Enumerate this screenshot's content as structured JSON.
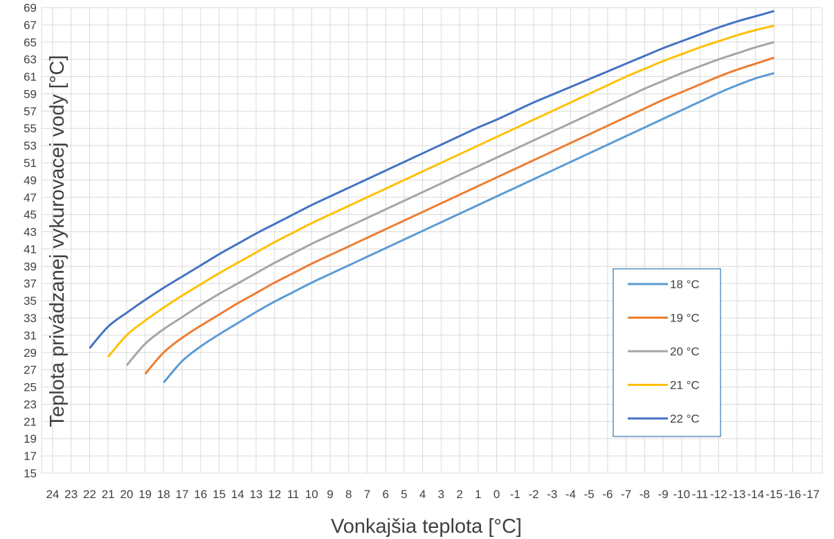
{
  "chart_data": {
    "type": "line",
    "xlabel": "Vonkajšia teplota [°C]",
    "ylabel": "Teplota privádzanej vykurovacej vody [°C]",
    "x_ticks": [
      24,
      23,
      22,
      21,
      20,
      19,
      18,
      17,
      16,
      15,
      14,
      13,
      12,
      11,
      10,
      9,
      8,
      7,
      6,
      5,
      4,
      3,
      2,
      1,
      0,
      -1,
      -2,
      -3,
      -4,
      -5,
      -6,
      -7,
      -8,
      -9,
      -10,
      -11,
      -12,
      -13,
      -14,
      -15,
      -16,
      -17
    ],
    "xlim": [
      24,
      -17
    ],
    "x_reversed": true,
    "ylim": [
      15,
      69
    ],
    "y_ticks": [
      15,
      17,
      19,
      21,
      23,
      25,
      27,
      29,
      31,
      33,
      35,
      37,
      39,
      41,
      43,
      45,
      47,
      49,
      51,
      53,
      55,
      57,
      59,
      61,
      63,
      65,
      67,
      69
    ],
    "grid": true,
    "legend_position": "bottom-right",
    "series": [
      {
        "name": "18 °C",
        "color": "#5B9BD5",
        "points": [
          [
            18,
            25.5
          ],
          [
            17,
            28
          ],
          [
            16,
            29.7
          ],
          [
            15,
            31.1
          ],
          [
            14,
            32.4
          ],
          [
            13,
            33.7
          ],
          [
            12,
            34.9
          ],
          [
            11,
            36
          ],
          [
            10,
            37.1
          ],
          [
            9,
            38.1
          ],
          [
            8,
            39.1
          ],
          [
            7,
            40.1
          ],
          [
            6,
            41.1
          ],
          [
            5,
            42.1
          ],
          [
            4,
            43.1
          ],
          [
            3,
            44.1
          ],
          [
            2,
            45.1
          ],
          [
            1,
            46.1
          ],
          [
            0,
            47.1
          ],
          [
            -1,
            48.1
          ],
          [
            -2,
            49.1
          ],
          [
            -3,
            50.1
          ],
          [
            -4,
            51.1
          ],
          [
            -5,
            52.1
          ],
          [
            -6,
            53.1
          ],
          [
            -7,
            54.1
          ],
          [
            -8,
            55.1
          ],
          [
            -9,
            56.1
          ],
          [
            -10,
            57.1
          ],
          [
            -11,
            58.1
          ],
          [
            -12,
            59.1
          ],
          [
            -13,
            60
          ],
          [
            -14,
            60.8
          ],
          [
            -15,
            61.4
          ]
        ]
      },
      {
        "name": "19 °C",
        "color": "#ED7D31",
        "points": [
          [
            19,
            26.5
          ],
          [
            18,
            29
          ],
          [
            17,
            30.7
          ],
          [
            16,
            32.1
          ],
          [
            15,
            33.4
          ],
          [
            14,
            34.7
          ],
          [
            13,
            35.9
          ],
          [
            12,
            37.1
          ],
          [
            11,
            38.2
          ],
          [
            10,
            39.3
          ],
          [
            9,
            40.3
          ],
          [
            8,
            41.3
          ],
          [
            7,
            42.3
          ],
          [
            6,
            43.3
          ],
          [
            5,
            44.3
          ],
          [
            4,
            45.3
          ],
          [
            3,
            46.3
          ],
          [
            2,
            47.3
          ],
          [
            1,
            48.3
          ],
          [
            0,
            49.3
          ],
          [
            -1,
            50.3
          ],
          [
            -2,
            51.3
          ],
          [
            -3,
            52.3
          ],
          [
            -4,
            53.3
          ],
          [
            -5,
            54.3
          ],
          [
            -6,
            55.3
          ],
          [
            -7,
            56.3
          ],
          [
            -8,
            57.3
          ],
          [
            -9,
            58.3
          ],
          [
            -10,
            59.2
          ],
          [
            -11,
            60.1
          ],
          [
            -12,
            61
          ],
          [
            -13,
            61.8
          ],
          [
            -14,
            62.5
          ],
          [
            -15,
            63.2
          ]
        ]
      },
      {
        "name": "20 °C",
        "color": "#A5A5A5",
        "points": [
          [
            20,
            27.5
          ],
          [
            19,
            30
          ],
          [
            18,
            31.7
          ],
          [
            17,
            33.1
          ],
          [
            16,
            34.5
          ],
          [
            15,
            35.8
          ],
          [
            14,
            37
          ],
          [
            13,
            38.2
          ],
          [
            12,
            39.4
          ],
          [
            11,
            40.5
          ],
          [
            10,
            41.6
          ],
          [
            9,
            42.6
          ],
          [
            8,
            43.6
          ],
          [
            7,
            44.6
          ],
          [
            6,
            45.6
          ],
          [
            5,
            46.6
          ],
          [
            4,
            47.6
          ],
          [
            3,
            48.6
          ],
          [
            2,
            49.6
          ],
          [
            1,
            50.6
          ],
          [
            0,
            51.6
          ],
          [
            -1,
            52.6
          ],
          [
            -2,
            53.6
          ],
          [
            -3,
            54.6
          ],
          [
            -4,
            55.6
          ],
          [
            -5,
            56.6
          ],
          [
            -6,
            57.6
          ],
          [
            -7,
            58.6
          ],
          [
            -8,
            59.6
          ],
          [
            -9,
            60.5
          ],
          [
            -10,
            61.4
          ],
          [
            -11,
            62.2
          ],
          [
            -12,
            63
          ],
          [
            -13,
            63.7
          ],
          [
            -14,
            64.4
          ],
          [
            -15,
            65
          ]
        ]
      },
      {
        "name": "21 °C",
        "color": "#FFC000",
        "points": [
          [
            21,
            28.5
          ],
          [
            20,
            31
          ],
          [
            19,
            32.7
          ],
          [
            18,
            34.2
          ],
          [
            17,
            35.6
          ],
          [
            16,
            36.9
          ],
          [
            15,
            38.2
          ],
          [
            14,
            39.4
          ],
          [
            13,
            40.6
          ],
          [
            12,
            41.8
          ],
          [
            11,
            42.9
          ],
          [
            10,
            44
          ],
          [
            9,
            45
          ],
          [
            8,
            46
          ],
          [
            7,
            47
          ],
          [
            6,
            48
          ],
          [
            5,
            49
          ],
          [
            4,
            50
          ],
          [
            3,
            51
          ],
          [
            2,
            52
          ],
          [
            1,
            53
          ],
          [
            0,
            54
          ],
          [
            -1,
            55
          ],
          [
            -2,
            56
          ],
          [
            -3,
            57
          ],
          [
            -4,
            58
          ],
          [
            -5,
            59
          ],
          [
            -6,
            60
          ],
          [
            -7,
            61
          ],
          [
            -8,
            61.9
          ],
          [
            -9,
            62.8
          ],
          [
            -10,
            63.6
          ],
          [
            -11,
            64.4
          ],
          [
            -12,
            65.1
          ],
          [
            -13,
            65.8
          ],
          [
            -14,
            66.4
          ],
          [
            -15,
            66.9
          ]
        ]
      },
      {
        "name": "22 °C",
        "color": "#4472C4",
        "points": [
          [
            22,
            29.5
          ],
          [
            21,
            32
          ],
          [
            20,
            33.6
          ],
          [
            19,
            35.1
          ],
          [
            18,
            36.5
          ],
          [
            17,
            37.8
          ],
          [
            16,
            39.1
          ],
          [
            15,
            40.4
          ],
          [
            14,
            41.6
          ],
          [
            13,
            42.8
          ],
          [
            12,
            43.9
          ],
          [
            11,
            45
          ],
          [
            10,
            46.1
          ],
          [
            9,
            47.1
          ],
          [
            8,
            48.1
          ],
          [
            7,
            49.1
          ],
          [
            6,
            50.1
          ],
          [
            5,
            51.1
          ],
          [
            4,
            52.1
          ],
          [
            3,
            53.1
          ],
          [
            2,
            54.1
          ],
          [
            1,
            55.1
          ],
          [
            0,
            56
          ],
          [
            -1,
            57
          ],
          [
            -2,
            58
          ],
          [
            -3,
            58.9
          ],
          [
            -4,
            59.8
          ],
          [
            -5,
            60.7
          ],
          [
            -6,
            61.6
          ],
          [
            -7,
            62.5
          ],
          [
            -8,
            63.4
          ],
          [
            -9,
            64.3
          ],
          [
            -10,
            65.1
          ],
          [
            -11,
            65.9
          ],
          [
            -12,
            66.7
          ],
          [
            -13,
            67.4
          ],
          [
            -14,
            68
          ],
          [
            -15,
            68.6
          ]
        ]
      }
    ]
  }
}
